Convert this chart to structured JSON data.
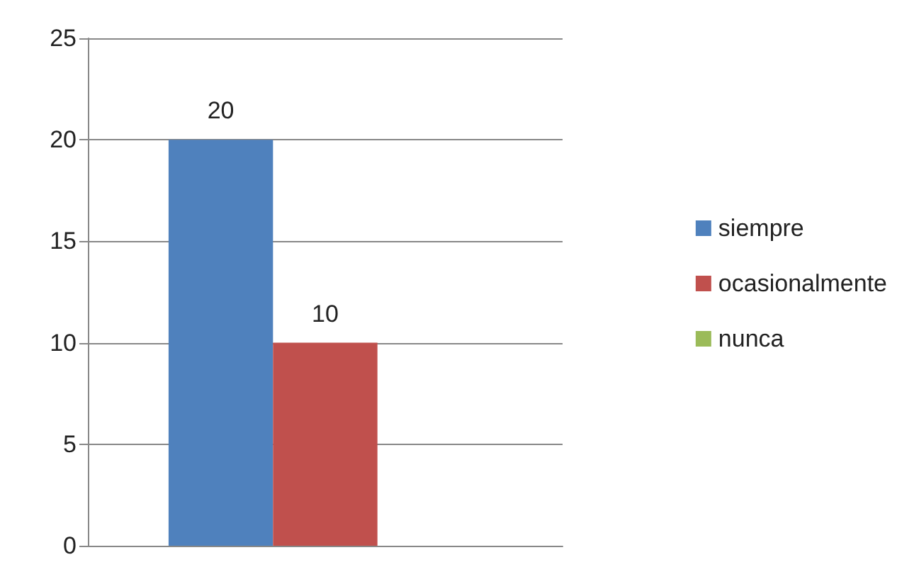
{
  "chart_data": {
    "type": "bar",
    "categories": [
      null
    ],
    "series": [
      {
        "name": "siempre",
        "color": "#4f81bd",
        "values": [
          20
        ],
        "value_labels": [
          "20"
        ]
      },
      {
        "name": "ocasionalmente",
        "color": "#c0504d",
        "values": [
          10
        ],
        "value_labels": [
          "10"
        ]
      },
      {
        "name": "nunca",
        "color": "#9bbb59",
        "values": [
          0
        ],
        "value_labels": [
          null
        ]
      }
    ],
    "ylim": [
      0,
      25
    ],
    "yticks": [
      0,
      5,
      10,
      15,
      20,
      25
    ],
    "grid": "y",
    "legend": "right"
  }
}
